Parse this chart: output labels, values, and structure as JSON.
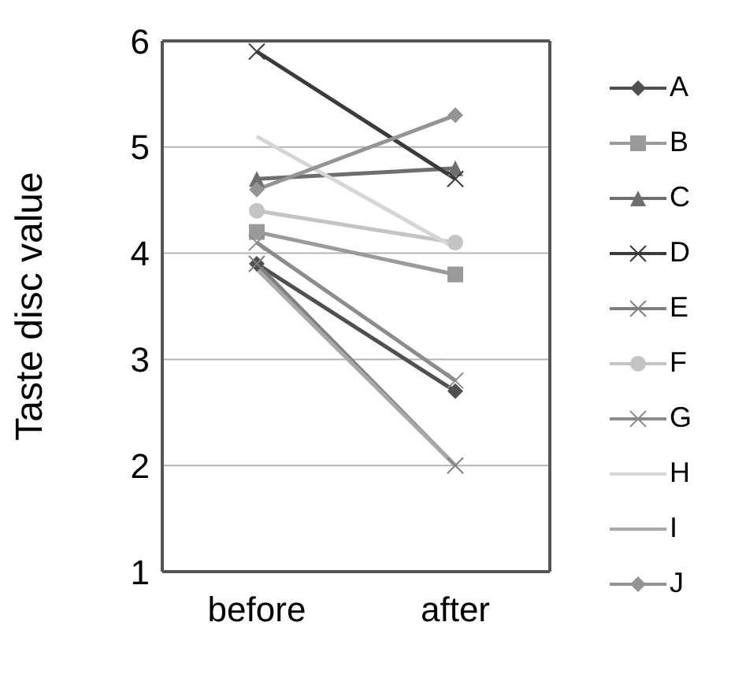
{
  "chart_data": {
    "type": "line",
    "ylabel": "Taste disc value",
    "categories": [
      "before",
      "after"
    ],
    "ylim": [
      1,
      6
    ],
    "yticks": [
      1,
      2,
      3,
      4,
      5,
      6
    ],
    "grid": "y",
    "legend": "right",
    "series": [
      {
        "name": "A",
        "color": "#505050",
        "marker": "diamond",
        "values": [
          3.9,
          2.7
        ]
      },
      {
        "name": "B",
        "color": "#9a9a9a",
        "marker": "square",
        "values": [
          4.2,
          3.8
        ]
      },
      {
        "name": "C",
        "color": "#6e6e6e",
        "marker": "triangle",
        "values": [
          4.7,
          4.8
        ]
      },
      {
        "name": "D",
        "color": "#3a3a3a",
        "marker": "cross",
        "values": [
          5.9,
          4.7
        ]
      },
      {
        "name": "E",
        "color": "#7f7f7f",
        "marker": "cross",
        "values": [
          3.9,
          2.0
        ]
      },
      {
        "name": "F",
        "color": "#c4c4c4",
        "marker": "circle",
        "values": [
          4.4,
          4.1
        ]
      },
      {
        "name": "G",
        "color": "#8c8c8c",
        "marker": "cross",
        "values": [
          4.1,
          2.8
        ]
      },
      {
        "name": "H",
        "color": "#d6d6d6",
        "marker": "none",
        "values": [
          5.1,
          4.05
        ]
      },
      {
        "name": "I",
        "color": "#a8a8a8",
        "marker": "none",
        "values": [
          3.85,
          2.0
        ]
      },
      {
        "name": "J",
        "color": "#949494",
        "marker": "diamond",
        "values": [
          4.6,
          5.3
        ]
      }
    ]
  }
}
